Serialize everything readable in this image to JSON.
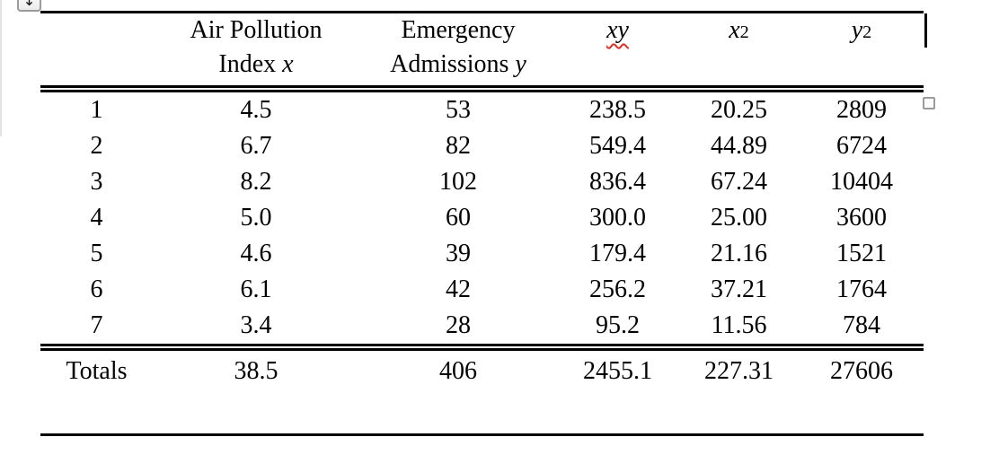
{
  "document": {
    "table": {
      "header": {
        "col_index": {
          "label": ""
        },
        "col_x": {
          "line1": "Air Pollution",
          "line2": "Index",
          "variable": "x"
        },
        "col_y": {
          "line1": "Emergency",
          "line2": "Admissions",
          "variable": "y"
        },
        "col_xy": {
          "variable": "xy",
          "spellcheck_underlined": true
        },
        "col_x2": {
          "variable": "x",
          "exponent": "2"
        },
        "col_y2": {
          "variable": "y",
          "exponent": "2"
        }
      },
      "rows": [
        [
          "1",
          "4.5",
          "53",
          "238.5",
          "20.25",
          "2809"
        ],
        [
          "2",
          "6.7",
          "82",
          "549.4",
          "44.89",
          "6724"
        ],
        [
          "3",
          "8.2",
          "102",
          "836.4",
          "67.24",
          "10404"
        ],
        [
          "4",
          "5.0",
          "60",
          "300.0",
          "25.00",
          "3600"
        ],
        [
          "5",
          "4.6",
          "39",
          "179.4",
          "21.16",
          "1521"
        ],
        [
          "6",
          "6.1",
          "42",
          "256.2",
          "37.21",
          "1764"
        ],
        [
          "7",
          "3.4",
          "28",
          "95.2",
          "11.56",
          "784"
        ]
      ],
      "totals_row": [
        "Totals",
        "38.5",
        "406",
        "2455.1",
        "227.31",
        "27606"
      ]
    },
    "ui": {
      "move_handle_glyph": "↕",
      "squiggle_color": "#d93025"
    }
  }
}
